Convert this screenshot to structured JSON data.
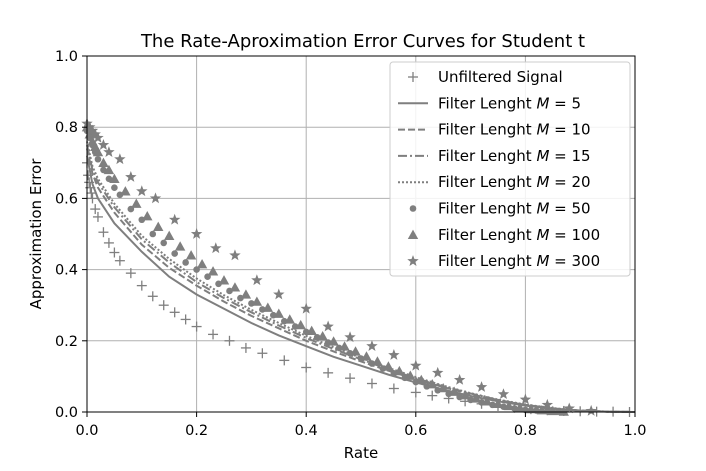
{
  "chart_data": {
    "type": "line",
    "title": "The Rate-Aproximation Error Curves for Student t",
    "xlabel": "Rate",
    "ylabel": "Approximation Error",
    "xlim": [
      0.0,
      1.0
    ],
    "ylim": [
      0.0,
      1.0
    ],
    "xticks": [
      "0.0",
      "0.2",
      "0.4",
      "0.6",
      "0.8",
      "1.0"
    ],
    "yticks": [
      "0.0",
      "0.2",
      "0.4",
      "0.6",
      "0.8",
      "1.0"
    ],
    "grid": true,
    "legend_position": "top-right",
    "series_color": "#7f7f7f",
    "series": [
      {
        "name": "Unfiltered Signal",
        "style": "plus-markers",
        "x": [
          0.0,
          0.002,
          0.004,
          0.006,
          0.008,
          0.01,
          0.015,
          0.02,
          0.03,
          0.04,
          0.05,
          0.06,
          0.08,
          0.1,
          0.12,
          0.14,
          0.16,
          0.18,
          0.2,
          0.23,
          0.26,
          0.29,
          0.32,
          0.36,
          0.4,
          0.44,
          0.48,
          0.52,
          0.56,
          0.6,
          0.63,
          0.66,
          0.69,
          0.72,
          0.75,
          0.78,
          0.81,
          0.84,
          0.87,
          0.9,
          0.93,
          0.96,
          0.99
        ],
        "values": [
          0.7,
          0.665,
          0.645,
          0.63,
          0.615,
          0.6,
          0.57,
          0.548,
          0.505,
          0.475,
          0.448,
          0.425,
          0.39,
          0.355,
          0.325,
          0.3,
          0.28,
          0.26,
          0.24,
          0.218,
          0.2,
          0.18,
          0.165,
          0.145,
          0.125,
          0.11,
          0.095,
          0.08,
          0.066,
          0.055,
          0.046,
          0.038,
          0.03,
          0.023,
          0.017,
          0.012,
          0.008,
          0.005,
          0.003,
          0.002,
          0.001,
          0.001,
          0.0
        ]
      },
      {
        "name": "Filter Lenght $M$ = 5",
        "legend_prefix": "Filter Lenght ",
        "legend_var": "M",
        "legend_suffix": " = 5",
        "style": "solid",
        "x": [
          0.0,
          0.01,
          0.02,
          0.05,
          0.1,
          0.15,
          0.2,
          0.25,
          0.3,
          0.35,
          0.4,
          0.45,
          0.5,
          0.55,
          0.6,
          0.65,
          0.7,
          0.75,
          0.8,
          0.85,
          0.9,
          0.95,
          1.0
        ],
        "values": [
          0.72,
          0.64,
          0.6,
          0.53,
          0.45,
          0.38,
          0.33,
          0.29,
          0.25,
          0.215,
          0.185,
          0.155,
          0.13,
          0.105,
          0.083,
          0.063,
          0.045,
          0.03,
          0.018,
          0.009,
          0.004,
          0.001,
          0.0
        ]
      },
      {
        "name": "Filter Lenght $M$ = 10",
        "legend_prefix": "Filter Lenght ",
        "legend_var": "M",
        "legend_suffix": " = 10",
        "style": "dashed",
        "x": [
          0.0,
          0.01,
          0.02,
          0.05,
          0.1,
          0.15,
          0.2,
          0.25,
          0.3,
          0.35,
          0.4,
          0.45,
          0.5,
          0.55,
          0.6,
          0.65,
          0.7,
          0.75,
          0.8,
          0.85,
          0.9,
          0.95,
          1.0
        ],
        "values": [
          0.74,
          0.67,
          0.63,
          0.56,
          0.47,
          0.405,
          0.355,
          0.31,
          0.27,
          0.235,
          0.2,
          0.17,
          0.142,
          0.116,
          0.092,
          0.07,
          0.05,
          0.033,
          0.02,
          0.01,
          0.004,
          0.001,
          0.0
        ]
      },
      {
        "name": "Filter Lenght $M$ = 15",
        "legend_prefix": "Filter Lenght ",
        "legend_var": "M",
        "legend_suffix": " = 15",
        "style": "dashdot",
        "x": [
          0.0,
          0.01,
          0.02,
          0.05,
          0.1,
          0.15,
          0.2,
          0.25,
          0.3,
          0.35,
          0.4,
          0.45,
          0.5,
          0.55,
          0.6,
          0.65,
          0.7,
          0.75,
          0.8,
          0.85,
          0.9,
          0.95,
          1.0
        ],
        "values": [
          0.75,
          0.68,
          0.645,
          0.575,
          0.485,
          0.42,
          0.365,
          0.32,
          0.28,
          0.243,
          0.208,
          0.177,
          0.148,
          0.12,
          0.095,
          0.072,
          0.052,
          0.034,
          0.02,
          0.01,
          0.004,
          0.001,
          0.0
        ]
      },
      {
        "name": "Filter Lenght $M$ = 20",
        "legend_prefix": "Filter Lenght ",
        "legend_var": "M",
        "legend_suffix": " = 20",
        "style": "dotted",
        "x": [
          0.0,
          0.01,
          0.02,
          0.05,
          0.1,
          0.15,
          0.2,
          0.25,
          0.3,
          0.35,
          0.4,
          0.45,
          0.5,
          0.55,
          0.6,
          0.65,
          0.7,
          0.75,
          0.8,
          0.85,
          0.9,
          0.95,
          1.0
        ],
        "values": [
          0.76,
          0.69,
          0.655,
          0.585,
          0.495,
          0.43,
          0.375,
          0.328,
          0.287,
          0.25,
          0.214,
          0.182,
          0.152,
          0.124,
          0.098,
          0.074,
          0.053,
          0.035,
          0.021,
          0.011,
          0.004,
          0.001,
          0.0
        ]
      },
      {
        "name": "Filter Lenght $M$ = 50",
        "legend_prefix": "Filter Lenght ",
        "legend_var": "M",
        "legend_suffix": " = 50",
        "style": "circle-markers",
        "x": [
          0.0,
          0.005,
          0.01,
          0.015,
          0.02,
          0.03,
          0.04,
          0.05,
          0.06,
          0.08,
          0.1,
          0.12,
          0.14,
          0.16,
          0.18,
          0.2,
          0.22,
          0.24,
          0.26,
          0.28,
          0.3,
          0.32,
          0.34,
          0.36,
          0.38,
          0.4,
          0.42,
          0.44,
          0.46,
          0.48,
          0.5,
          0.52,
          0.54,
          0.56,
          0.58,
          0.6,
          0.62,
          0.64,
          0.66,
          0.68,
          0.7,
          0.72,
          0.74,
          0.76,
          0.78,
          0.8,
          0.82,
          0.84,
          0.86
        ],
        "values": [
          0.79,
          0.77,
          0.75,
          0.73,
          0.71,
          0.68,
          0.655,
          0.63,
          0.61,
          0.57,
          0.54,
          0.5,
          0.475,
          0.445,
          0.42,
          0.4,
          0.38,
          0.36,
          0.34,
          0.32,
          0.305,
          0.288,
          0.272,
          0.255,
          0.24,
          0.225,
          0.21,
          0.195,
          0.18,
          0.165,
          0.15,
          0.136,
          0.122,
          0.108,
          0.096,
          0.084,
          0.072,
          0.061,
          0.051,
          0.042,
          0.034,
          0.027,
          0.02,
          0.015,
          0.01,
          0.006,
          0.004,
          0.002,
          0.001
        ]
      },
      {
        "name": "Filter Lenght $M$ = 100",
        "legend_prefix": "Filter Lenght ",
        "legend_var": "M",
        "legend_suffix": " = 100",
        "style": "triangle-markers",
        "x": [
          0.0,
          0.005,
          0.01,
          0.015,
          0.02,
          0.03,
          0.04,
          0.05,
          0.07,
          0.09,
          0.11,
          0.13,
          0.15,
          0.17,
          0.19,
          0.21,
          0.23,
          0.25,
          0.27,
          0.29,
          0.31,
          0.33,
          0.35,
          0.37,
          0.39,
          0.41,
          0.43,
          0.45,
          0.47,
          0.49,
          0.51,
          0.53,
          0.55,
          0.57,
          0.59,
          0.61,
          0.63,
          0.65,
          0.67,
          0.69,
          0.71,
          0.73,
          0.75,
          0.77,
          0.79,
          0.81,
          0.83,
          0.85,
          0.87
        ],
        "values": [
          0.8,
          0.78,
          0.76,
          0.745,
          0.73,
          0.7,
          0.68,
          0.655,
          0.62,
          0.585,
          0.55,
          0.52,
          0.495,
          0.465,
          0.44,
          0.415,
          0.395,
          0.37,
          0.35,
          0.33,
          0.31,
          0.293,
          0.276,
          0.26,
          0.244,
          0.228,
          0.213,
          0.198,
          0.184,
          0.17,
          0.156,
          0.142,
          0.128,
          0.115,
          0.102,
          0.09,
          0.078,
          0.067,
          0.057,
          0.047,
          0.038,
          0.03,
          0.023,
          0.017,
          0.012,
          0.008,
          0.005,
          0.003,
          0.001
        ]
      },
      {
        "name": "Filter Lenght $M$ = 300",
        "legend_prefix": "Filter Lenght ",
        "legend_var": "M",
        "legend_suffix": " = 300",
        "style": "star-markers",
        "x": [
          0.0,
          0.005,
          0.01,
          0.015,
          0.02,
          0.03,
          0.04,
          0.06,
          0.08,
          0.1,
          0.125,
          0.16,
          0.2,
          0.235,
          0.27,
          0.31,
          0.35,
          0.4,
          0.44,
          0.48,
          0.52,
          0.56,
          0.6,
          0.64,
          0.68,
          0.72,
          0.76,
          0.8,
          0.84,
          0.88,
          0.92
        ],
        "values": [
          0.81,
          0.8,
          0.79,
          0.78,
          0.77,
          0.75,
          0.73,
          0.71,
          0.66,
          0.62,
          0.6,
          0.54,
          0.5,
          0.46,
          0.44,
          0.37,
          0.33,
          0.29,
          0.24,
          0.21,
          0.185,
          0.16,
          0.13,
          0.11,
          0.09,
          0.07,
          0.05,
          0.035,
          0.02,
          0.01,
          0.003
        ]
      }
    ]
  }
}
